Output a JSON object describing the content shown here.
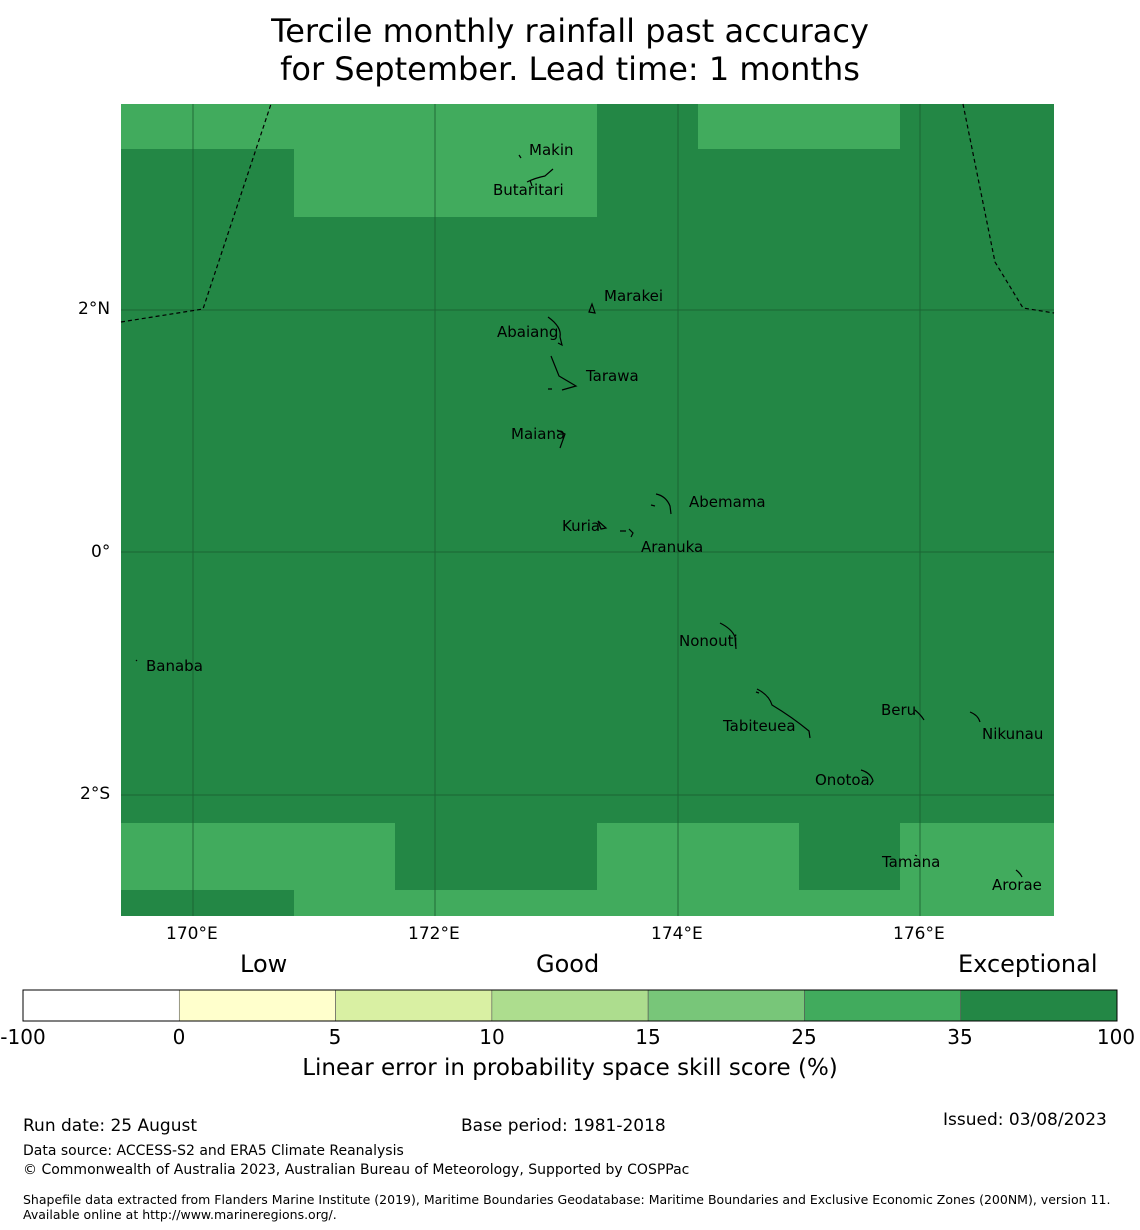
{
  "title": {
    "line1": "Tercile monthly rainfall past accuracy",
    "line2": "for September. Lead time: 1 months"
  },
  "map": {
    "lat_labels": [
      "2°N",
      "0°",
      "2°S"
    ],
    "lon_labels": [
      "170°E",
      "172°E",
      "174°E",
      "176°E"
    ],
    "colors": {
      "dark": "#238745",
      "light": "#41ab5d",
      "boundary": "#000000",
      "grid": "#1a5c30"
    },
    "places": [
      "Makin",
      "Butaritari",
      "Marakei",
      "Abaiang",
      "Tarawa",
      "Maiana",
      "Abemama",
      "Kuria",
      "Aranuka",
      "Banaba",
      "Nonouti",
      "Beru",
      "Tabiteuea",
      "Nikunau",
      "Onotoa",
      "Tamana",
      "Arorae"
    ]
  },
  "colorbar": {
    "category_labels": [
      "Low",
      "Good",
      "Exceptional"
    ],
    "ticks": [
      "-100",
      "0",
      "5",
      "10",
      "15",
      "25",
      "35",
      "100"
    ],
    "colors": [
      "#ffffff",
      "#ffffcc",
      "#d9f0a3",
      "#addd8e",
      "#78c679",
      "#41ab5d",
      "#238745"
    ],
    "label": "Linear error in probability space skill score (%)"
  },
  "footer": {
    "run_date": "Run date: 25 August",
    "base_period": "Base period: 1981-2018",
    "issued": "Issued: 03/08/2023",
    "data_source": "Data source: ACCESS-S2 and ERA5 Climate Reanalysis",
    "copyright": "© Commonwealth of Australia 2023, Australian Bureau of Meteorology, Supported by COSPPac",
    "shapefile": "Shapefile data extracted from Flanders Marine Institute (2019), Maritime Boundaries Geodatabase: Maritime Boundaries and Exclusive Economic Zones (200NM), version 11. Available online at http://www.marineregions.org/."
  }
}
